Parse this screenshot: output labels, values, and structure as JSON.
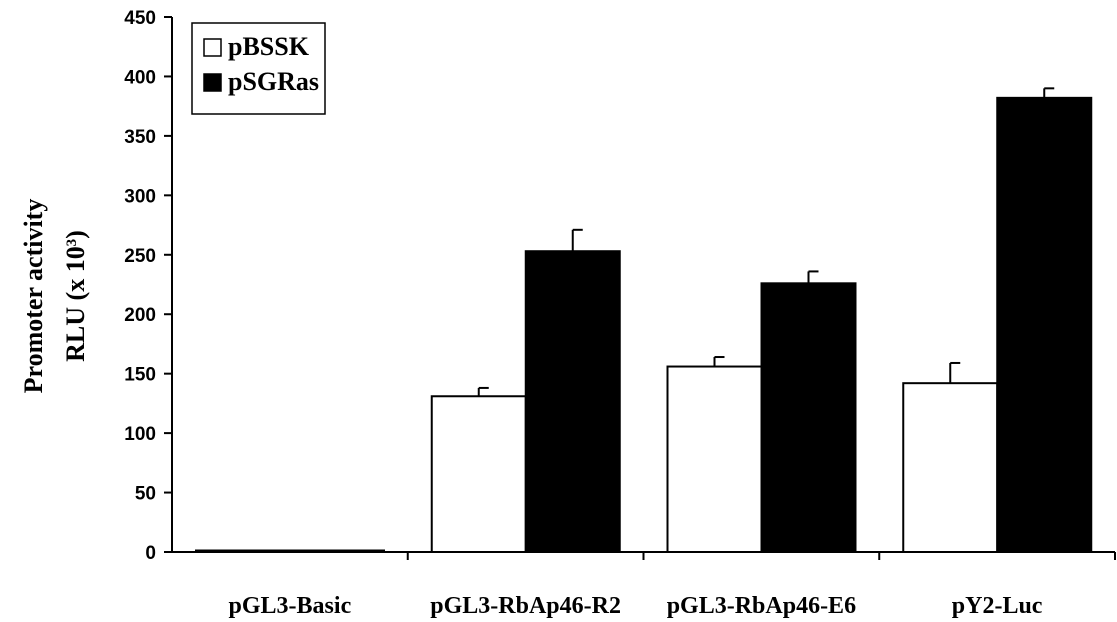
{
  "chart_data": {
    "type": "bar",
    "categories": [
      "pGL3-Basic",
      "pGL3-RbAp46-R2",
      "pGL3-RbAp46-E6",
      "pY2-Luc"
    ],
    "series": [
      {
        "name": "pBSSK",
        "values": [
          1,
          131,
          156,
          142
        ],
        "errors": [
          0,
          7,
          8,
          17
        ],
        "color": "#ffffff"
      },
      {
        "name": "pSGRas",
        "values": [
          1,
          253,
          226,
          382
        ],
        "errors": [
          0,
          18,
          10,
          8
        ],
        "color": "#000000"
      }
    ],
    "ylabel_line1": "Promoter activity",
    "ylabel_line2_prefix": "RLU (x 10",
    "ylabel_line2_exp": "3",
    "ylabel_line2_suffix": ")",
    "ylim": [
      0,
      450
    ],
    "yticks": [
      0,
      50,
      100,
      150,
      200,
      250,
      300,
      350,
      400,
      450
    ],
    "legend_position": "top-left",
    "grid": false
  }
}
